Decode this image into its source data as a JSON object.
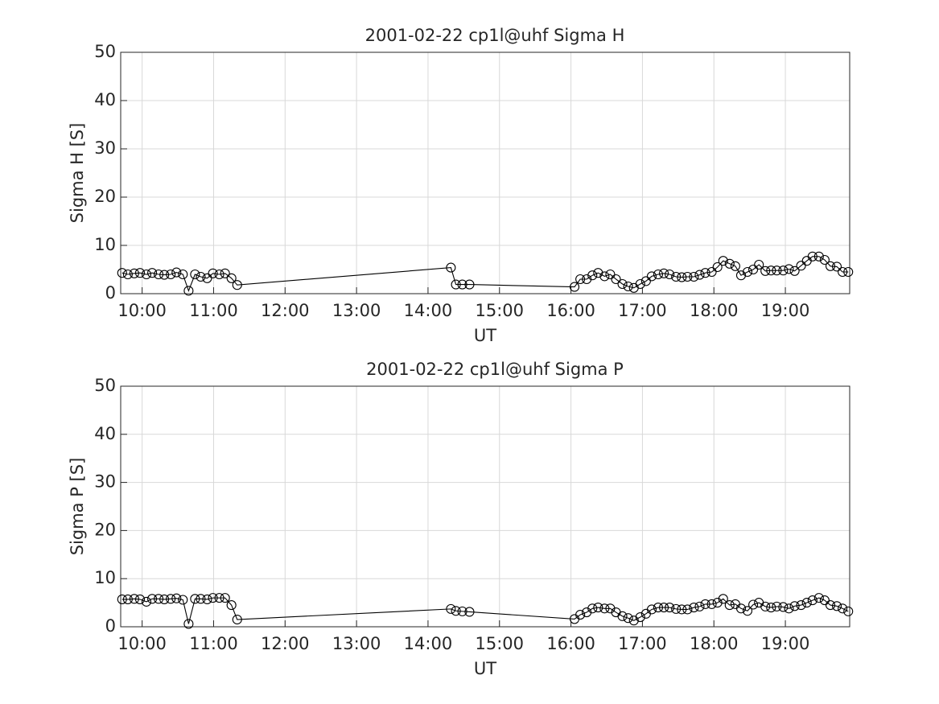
{
  "chart_data": [
    {
      "type": "line",
      "title": "2001-02-22  cp1l@uhf Sigma H",
      "xlabel": "UT",
      "ylabel": "Sigma H [S]",
      "color": "#000000",
      "grid": true,
      "x": [
        9.72,
        9.8,
        9.89,
        9.97,
        10.06,
        10.14,
        10.23,
        10.31,
        10.4,
        10.48,
        10.57,
        10.65,
        10.74,
        10.82,
        10.91,
        10.99,
        11.08,
        11.16,
        11.25,
        11.33,
        14.32,
        14.39,
        14.48,
        14.58,
        16.05,
        16.13,
        16.22,
        16.3,
        16.38,
        16.47,
        16.55,
        16.63,
        16.72,
        16.8,
        16.88,
        16.97,
        17.05,
        17.13,
        17.22,
        17.3,
        17.38,
        17.47,
        17.55,
        17.63,
        17.72,
        17.8,
        17.88,
        17.97,
        18.05,
        18.13,
        18.22,
        18.3,
        18.38,
        18.47,
        18.55,
        18.63,
        18.72,
        18.8,
        18.88,
        18.97,
        19.05,
        19.13,
        19.22,
        19.3,
        19.38,
        19.47,
        19.55,
        19.63,
        19.72,
        19.8,
        19.88
      ],
      "values": [
        4.3,
        4.0,
        4.2,
        4.3,
        4.0,
        4.3,
        4.0,
        3.9,
        4.0,
        4.4,
        4.0,
        0.6,
        4.0,
        3.5,
        3.2,
        4.2,
        4.0,
        4.2,
        3.2,
        1.8,
        5.4,
        1.9,
        1.9,
        1.9,
        1.4,
        3.0,
        3.0,
        3.8,
        4.3,
        3.6,
        4.0,
        3.0,
        2.0,
        1.5,
        1.2,
        2.0,
        2.6,
        3.6,
        4.0,
        4.2,
        4.0,
        3.5,
        3.4,
        3.5,
        3.5,
        3.9,
        4.3,
        4.5,
        5.5,
        6.8,
        6.2,
        5.7,
        3.8,
        4.5,
        5.0,
        6.0,
        4.7,
        4.8,
        4.8,
        4.8,
        5.1,
        4.7,
        5.8,
        6.8,
        7.7,
        7.7,
        7.0,
        5.7,
        5.6,
        4.5,
        4.5
      ],
      "xlim": [
        9.7,
        19.9
      ],
      "xticks": [
        {
          "value": 10,
          "label": "10:00"
        },
        {
          "value": 11,
          "label": "11:00"
        },
        {
          "value": 12,
          "label": "12:00"
        },
        {
          "value": 13,
          "label": "13:00"
        },
        {
          "value": 14,
          "label": "14:00"
        },
        {
          "value": 15,
          "label": "15:00"
        },
        {
          "value": 16,
          "label": "16:00"
        },
        {
          "value": 17,
          "label": "17:00"
        },
        {
          "value": 18,
          "label": "18:00"
        },
        {
          "value": 19,
          "label": "19:00"
        }
      ],
      "ylim": [
        0,
        50
      ],
      "yticks": [
        0,
        10,
        20,
        30,
        40,
        50
      ]
    },
    {
      "type": "line",
      "title": "2001-02-22  cp1l@uhf Sigma P",
      "xlabel": "UT",
      "ylabel": "Sigma P [S]",
      "color": "#000000",
      "grid": true,
      "x": [
        9.72,
        9.8,
        9.89,
        9.97,
        10.06,
        10.14,
        10.23,
        10.31,
        10.4,
        10.48,
        10.57,
        10.65,
        10.74,
        10.82,
        10.91,
        10.99,
        11.08,
        11.16,
        11.25,
        11.33,
        14.32,
        14.39,
        14.48,
        14.58,
        16.05,
        16.13,
        16.22,
        16.3,
        16.38,
        16.47,
        16.55,
        16.63,
        16.72,
        16.8,
        16.88,
        16.97,
        17.05,
        17.13,
        17.22,
        17.3,
        17.38,
        17.47,
        17.55,
        17.63,
        17.72,
        17.8,
        17.88,
        17.97,
        18.05,
        18.13,
        18.22,
        18.3,
        18.38,
        18.47,
        18.55,
        18.63,
        18.72,
        18.8,
        18.88,
        18.97,
        19.05,
        19.13,
        19.22,
        19.3,
        19.38,
        19.47,
        19.55,
        19.63,
        19.72,
        19.8,
        19.88
      ],
      "values": [
        5.7,
        5.7,
        5.8,
        5.7,
        5.2,
        5.8,
        5.8,
        5.7,
        5.8,
        5.9,
        5.6,
        0.6,
        5.8,
        5.8,
        5.7,
        6.0,
        6.0,
        6.0,
        4.5,
        1.5,
        3.7,
        3.3,
        3.2,
        3.1,
        1.6,
        2.5,
        3.0,
        3.8,
        4.0,
        3.8,
        3.8,
        3.0,
        2.2,
        1.8,
        1.3,
        2.0,
        2.7,
        3.6,
        4.0,
        4.0,
        4.0,
        3.7,
        3.6,
        3.6,
        4.0,
        4.2,
        4.7,
        4.7,
        5.0,
        5.8,
        4.5,
        4.7,
        3.8,
        3.3,
        4.6,
        5.0,
        4.2,
        4.0,
        4.2,
        4.1,
        3.8,
        4.3,
        4.5,
        5.0,
        5.5,
        6.0,
        5.5,
        4.5,
        4.3,
        3.8,
        3.2
      ],
      "xlim": [
        9.7,
        19.9
      ],
      "xticks": [
        {
          "value": 10,
          "label": "10:00"
        },
        {
          "value": 11,
          "label": "11:00"
        },
        {
          "value": 12,
          "label": "12:00"
        },
        {
          "value": 13,
          "label": "13:00"
        },
        {
          "value": 14,
          "label": "14:00"
        },
        {
          "value": 15,
          "label": "15:00"
        },
        {
          "value": 16,
          "label": "16:00"
        },
        {
          "value": 17,
          "label": "17:00"
        },
        {
          "value": 18,
          "label": "18:00"
        },
        {
          "value": 19,
          "label": "19:00"
        }
      ],
      "ylim": [
        0,
        50
      ],
      "yticks": [
        0,
        10,
        20,
        30,
        40,
        50
      ]
    }
  ]
}
